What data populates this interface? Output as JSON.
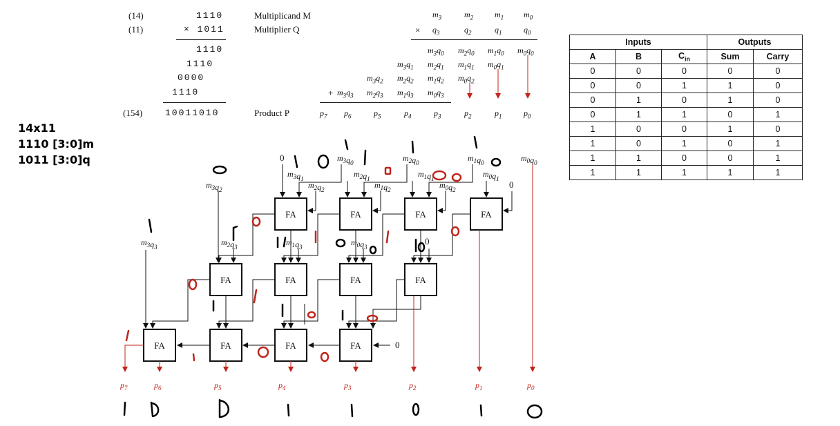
{
  "top_calc": {
    "labels": [
      "(14)",
      "(11)",
      "(154)"
    ],
    "rows": [
      "1110",
      "× 1011",
      "1110",
      "1110",
      "0000",
      "1110",
      "10011010"
    ],
    "multiplicand": "Multiplicand M",
    "multiplier": "Multiplier Q",
    "product": "Product P"
  },
  "symbolic": {
    "m_row": [
      "m3",
      "m2",
      "m1",
      "m0"
    ],
    "times": "×",
    "q_row": [
      "q3",
      "q2",
      "q1",
      "q0"
    ],
    "pp0": [
      "m3q0",
      "m2q0",
      "m1q0",
      "m0q0"
    ],
    "pp1": [
      "m3q1",
      "m2q1",
      "m1q1",
      "m0q1"
    ],
    "pp2": [
      "m3q2",
      "m2q2",
      "m1q2",
      "m0q2"
    ],
    "plus": "+",
    "pp3": [
      "m3q3",
      "m2q3",
      "m1q3",
      "m0q3"
    ],
    "p_row": [
      "p7",
      "p6",
      "p5",
      "p4",
      "p3",
      "p2",
      "p1",
      "p0"
    ]
  },
  "notes": [
    "14x11",
    "1110 [3:0]m",
    "1011 [3:0]q"
  ],
  "truth_table": {
    "group_headers": [
      "Inputs",
      "Outputs"
    ],
    "columns": [
      "A",
      "B",
      "Cin",
      "Sum",
      "Carry"
    ],
    "rows": [
      [
        "0",
        "0",
        "0",
        "0",
        "0"
      ],
      [
        "0",
        "0",
        "1",
        "1",
        "0"
      ],
      [
        "0",
        "1",
        "0",
        "1",
        "0"
      ],
      [
        "0",
        "1",
        "1",
        "0",
        "1"
      ],
      [
        "1",
        "0",
        "0",
        "1",
        "0"
      ],
      [
        "1",
        "0",
        "1",
        "0",
        "1"
      ],
      [
        "1",
        "1",
        "0",
        "0",
        "1"
      ],
      [
        "1",
        "1",
        "1",
        "1",
        "1"
      ]
    ]
  },
  "circuit": {
    "fa_label": "FA",
    "zero": "0",
    "inputs": {
      "m3q0": "m3q0",
      "m2q0": "m2q0",
      "m1q0": "m1q0",
      "m0q0": "m0q0",
      "m3q1": "m3q1",
      "m2q1": "m2q1",
      "m1q1": "m1q1",
      "m0q1": "m0q1",
      "m3q2": "m3q2",
      "m2q2": "m2q2",
      "m1q2": "m1q2",
      "m0q2": "m0q2",
      "m3q3": "m3q3",
      "m2q3": "m2q3",
      "m1q3": "m1q3",
      "m0q3": "m0q3"
    },
    "outputs": [
      "p7",
      "p6",
      "p5",
      "p4",
      "p3",
      "p2",
      "p1",
      "p0"
    ],
    "handwritten_result": [
      "1",
      "0",
      "0",
      "1",
      "1",
      "0",
      "1",
      "0"
    ]
  },
  "colors": {
    "ink": "#111111",
    "red": "#c0241a",
    "hand_black": "#000000"
  }
}
